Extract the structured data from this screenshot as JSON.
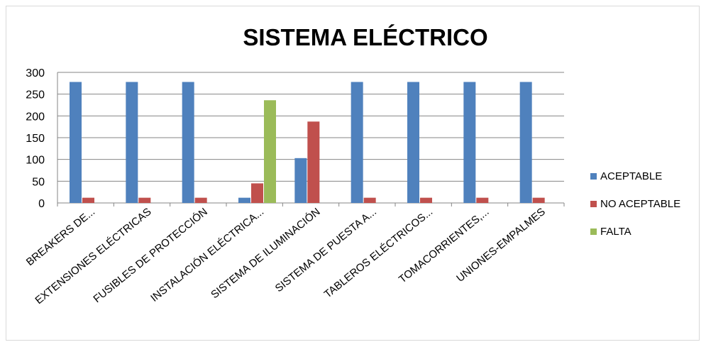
{
  "chart_data": {
    "type": "bar",
    "title": "SISTEMA ELÉCTRICO",
    "xlabel": "",
    "ylabel": "",
    "ylim": [
      0,
      300
    ],
    "yticks": [
      0,
      50,
      100,
      150,
      200,
      250,
      300
    ],
    "grid": true,
    "legend_position": "right",
    "categories": [
      "BREAKERS DE...",
      "EXTENSIONES ELÉCTRICAS",
      "FUSIBLES DE PROTECCIÓN",
      "INSTALACIÓN ELÉCTRICA...",
      "SISTEMA DE ILUMINACIÓN",
      "SISTEMA DE PUESTA A...",
      "TABLEROS ELÉCTRICOS...",
      "TOMACORRIENTES,...",
      "UNIONES-EMPALMES"
    ],
    "series": [
      {
        "name": "ACEPTABLE",
        "color": "#4F81BD",
        "values": [
          278,
          278,
          278,
          12,
          103,
          278,
          278,
          278,
          278
        ]
      },
      {
        "name": "NO ACEPTABLE",
        "color": "#C0504D",
        "values": [
          12,
          12,
          12,
          45,
          187,
          12,
          12,
          12,
          12
        ]
      },
      {
        "name": "FALTA",
        "color": "#9BBB59",
        "values": [
          0,
          0,
          0,
          236,
          0,
          0,
          0,
          0,
          0
        ]
      }
    ]
  }
}
